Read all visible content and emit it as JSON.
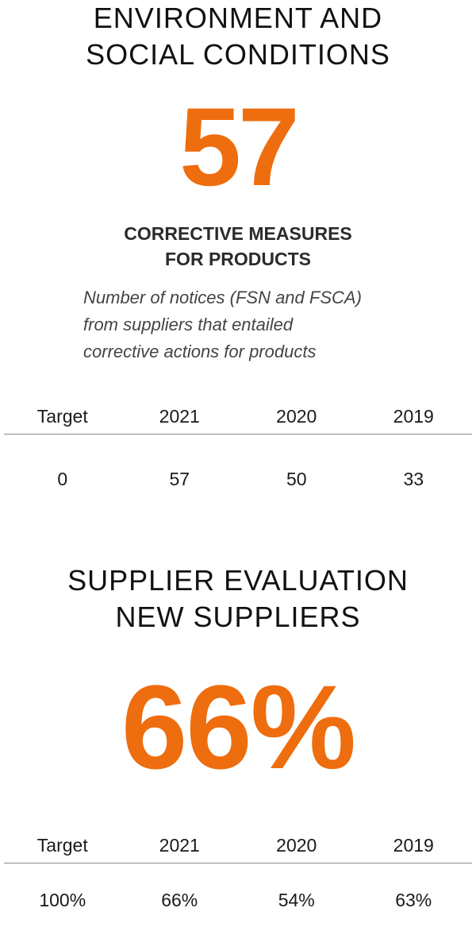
{
  "section1": {
    "title_lines": [
      "ENVIRONMENT AND",
      "SOCIAL CONDITIONS"
    ],
    "big_number": "57",
    "subheading_lines": [
      "CORRECTIVE MEASURES",
      "FOR PRODUCTS"
    ],
    "description_lines": [
      "Number of notices (FSN and FSCA)",
      "from suppliers that entailed",
      "corrective actions for products"
    ],
    "table": {
      "headers": [
        "Target",
        "2021",
        "2020",
        "2019"
      ],
      "values": [
        "0",
        "57",
        "50",
        "33"
      ]
    }
  },
  "section2": {
    "title_lines": [
      "SUPPLIER EVALUATION",
      "NEW SUPPLIERS"
    ],
    "big_number": "66%",
    "table": {
      "headers": [
        "Target",
        "2021",
        "2020",
        "2019"
      ],
      "values": [
        "100%",
        "66%",
        "54%",
        "63%"
      ]
    }
  },
  "colors": {
    "accent": "#ee6d0e",
    "text": "#1a1a1a",
    "rule": "#8a8a8a"
  }
}
